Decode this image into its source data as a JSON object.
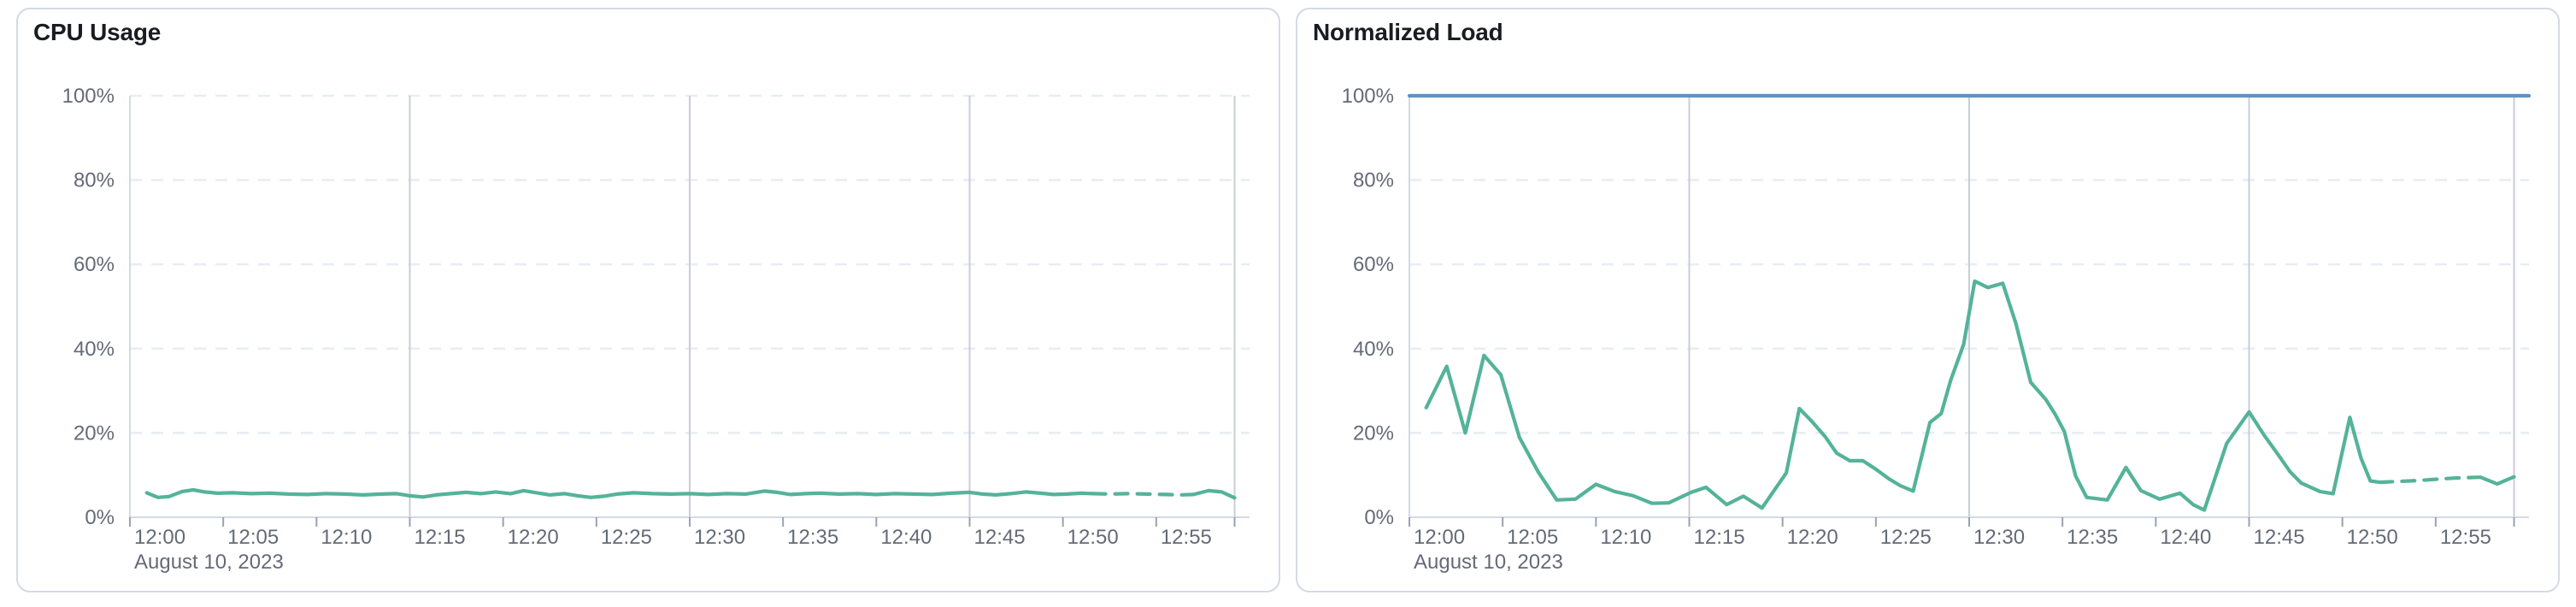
{
  "page": {
    "background_color": "#ffffff",
    "panel_count": 2
  },
  "styles": {
    "panel_border_color": "#d3dae6",
    "title_color": "#1a1c21",
    "axis_label_color": "#646a77",
    "tick_color": "#98a2b3",
    "axis_line_color": "#d3dae6",
    "grid_dashed_color": "#e8ecf3",
    "grid_solid_color": "#c8cdd7",
    "series_green": "#54B399",
    "series_blue": "#6092C0"
  },
  "chart_data": [
    {
      "type": "line",
      "title": "CPU Usage",
      "x_axis": {
        "date_label": "August 10, 2023",
        "tick_labels": [
          "12:00",
          "12:05",
          "12:10",
          "12:15",
          "12:20",
          "12:25",
          "12:30",
          "12:35",
          "12:40",
          "12:45",
          "12:50",
          "12:55"
        ],
        "tick_minutes": [
          0,
          5,
          10,
          15,
          20,
          25,
          30,
          35,
          40,
          45,
          50,
          55
        ],
        "domain_minutes": [
          0,
          60
        ],
        "solid_gridline_minutes": [
          15,
          30,
          45
        ],
        "end_marker_minute": 59.2,
        "grid": "solid vertical lines every 15 min, end-of-data marker line at right"
      },
      "y_axis": {
        "tick_labels": [
          "0%",
          "20%",
          "40%",
          "60%",
          "80%",
          "100%"
        ],
        "tick_values": [
          0,
          20,
          40,
          60,
          80,
          100
        ],
        "ylim": [
          0,
          100
        ],
        "grid": "dashed horizontal gridlines at each tick, solid baseline at 0%"
      },
      "legend": "none",
      "series": [
        {
          "name": "CPU Usage",
          "color": "#54B399",
          "dashed_from_minute": 51.6,
          "dashed_to_minute": 57.0,
          "dashed_meaning": "partial/incomplete last buckets",
          "points": [
            [
              0.9,
              5.8
            ],
            [
              1.5,
              4.7
            ],
            [
              2.1,
              4.9
            ],
            [
              2.8,
              6.1
            ],
            [
              3.4,
              6.5
            ],
            [
              4.0,
              6.0
            ],
            [
              4.7,
              5.7
            ],
            [
              5.5,
              5.8
            ],
            [
              6.5,
              5.6
            ],
            [
              7.5,
              5.7
            ],
            [
              8.5,
              5.5
            ],
            [
              9.5,
              5.4
            ],
            [
              10.5,
              5.6
            ],
            [
              11.5,
              5.5
            ],
            [
              12.5,
              5.3
            ],
            [
              13.5,
              5.5
            ],
            [
              14.3,
              5.6
            ],
            [
              15.0,
              5.1
            ],
            [
              15.7,
              4.8
            ],
            [
              16.4,
              5.3
            ],
            [
              17.2,
              5.6
            ],
            [
              18.0,
              5.9
            ],
            [
              18.8,
              5.6
            ],
            [
              19.6,
              6.0
            ],
            [
              20.4,
              5.6
            ],
            [
              21.1,
              6.3
            ],
            [
              21.8,
              5.8
            ],
            [
              22.5,
              5.3
            ],
            [
              23.3,
              5.6
            ],
            [
              24.0,
              5.1
            ],
            [
              24.7,
              4.7
            ],
            [
              25.4,
              5.0
            ],
            [
              26.1,
              5.5
            ],
            [
              27.0,
              5.8
            ],
            [
              28.0,
              5.6
            ],
            [
              29.0,
              5.5
            ],
            [
              30.0,
              5.6
            ],
            [
              31.0,
              5.4
            ],
            [
              32.0,
              5.6
            ],
            [
              33.0,
              5.5
            ],
            [
              34.0,
              6.2
            ],
            [
              34.7,
              5.9
            ],
            [
              35.4,
              5.4
            ],
            [
              36.2,
              5.6
            ],
            [
              37.0,
              5.7
            ],
            [
              38.0,
              5.5
            ],
            [
              39.0,
              5.6
            ],
            [
              40.0,
              5.4
            ],
            [
              41.0,
              5.6
            ],
            [
              42.0,
              5.5
            ],
            [
              43.0,
              5.4
            ],
            [
              44.0,
              5.7
            ],
            [
              45.0,
              5.9
            ],
            [
              45.7,
              5.5
            ],
            [
              46.4,
              5.3
            ],
            [
              47.2,
              5.6
            ],
            [
              48.0,
              6.0
            ],
            [
              48.8,
              5.7
            ],
            [
              49.5,
              5.4
            ],
            [
              50.2,
              5.5
            ],
            [
              51.0,
              5.7
            ],
            [
              51.6,
              5.6
            ],
            [
              52.5,
              5.5
            ],
            [
              53.5,
              5.6
            ],
            [
              54.5,
              5.5
            ],
            [
              55.5,
              5.4
            ],
            [
              56.2,
              5.3
            ],
            [
              57.0,
              5.4
            ],
            [
              57.8,
              6.3
            ],
            [
              58.5,
              6.0
            ],
            [
              59.2,
              4.6
            ]
          ]
        }
      ]
    },
    {
      "type": "line",
      "title": "Normalized Load",
      "x_axis": {
        "date_label": "August 10, 2023",
        "tick_labels": [
          "12:00",
          "12:05",
          "12:10",
          "12:15",
          "12:20",
          "12:25",
          "12:30",
          "12:35",
          "12:40",
          "12:45",
          "12:50",
          "12:55"
        ],
        "tick_minutes": [
          0,
          5,
          10,
          15,
          20,
          25,
          30,
          35,
          40,
          45,
          50,
          55
        ],
        "domain_minutes": [
          0,
          60
        ],
        "solid_gridline_minutes": [
          15,
          30,
          45
        ],
        "end_marker_minute": 59.2,
        "grid": "solid vertical lines every 15 min, end-of-data marker line at right"
      },
      "y_axis": {
        "tick_labels": [
          "0%",
          "20%",
          "40%",
          "60%",
          "80%",
          "100%"
        ],
        "tick_values": [
          0,
          20,
          40,
          60,
          80,
          100
        ],
        "ylim": [
          0,
          100
        ],
        "grid": "dashed horizontal gridlines at each tick, solid baseline at 0%"
      },
      "legend": "none",
      "series": [
        {
          "name": "Limit 100%",
          "color": "#6092C0",
          "points": [
            [
              0,
              100
            ],
            [
              60,
              100
            ]
          ]
        },
        {
          "name": "Normalized Load",
          "color": "#54B399",
          "dashed_from_minute": 52.0,
          "dashed_to_minute": 57.4,
          "dashed_meaning": "partial/incomplete last buckets",
          "points": [
            [
              0.9,
              26.0
            ],
            [
              2.0,
              35.8
            ],
            [
              3.0,
              20.0
            ],
            [
              4.0,
              38.4
            ],
            [
              4.9,
              33.8
            ],
            [
              5.9,
              18.9
            ],
            [
              6.9,
              10.8
            ],
            [
              7.9,
              4.1
            ],
            [
              8.9,
              4.3
            ],
            [
              10.0,
              7.8
            ],
            [
              11.0,
              6.1
            ],
            [
              12.0,
              5.1
            ],
            [
              13.0,
              3.3
            ],
            [
              13.9,
              3.4
            ],
            [
              15.1,
              5.9
            ],
            [
              15.9,
              7.1
            ],
            [
              17.0,
              3.0
            ],
            [
              17.9,
              5.0
            ],
            [
              18.9,
              2.2
            ],
            [
              20.2,
              10.5
            ],
            [
              20.9,
              25.8
            ],
            [
              21.6,
              22.6
            ],
            [
              22.3,
              19.0
            ],
            [
              22.9,
              15.2
            ],
            [
              23.6,
              13.4
            ],
            [
              24.3,
              13.4
            ],
            [
              25.0,
              11.4
            ],
            [
              25.7,
              9.1
            ],
            [
              26.3,
              7.5
            ],
            [
              27.0,
              6.2
            ],
            [
              27.9,
              22.5
            ],
            [
              28.5,
              24.6
            ],
            [
              29.0,
              32.4
            ],
            [
              29.7,
              41.0
            ],
            [
              30.3,
              56.0
            ],
            [
              31.0,
              54.5
            ],
            [
              31.8,
              55.5
            ],
            [
              32.5,
              46.0
            ],
            [
              33.3,
              32.0
            ],
            [
              34.1,
              28.0
            ],
            [
              34.6,
              24.5
            ],
            [
              35.1,
              20.3
            ],
            [
              35.7,
              9.8
            ],
            [
              36.3,
              4.7
            ],
            [
              37.4,
              4.1
            ],
            [
              38.4,
              11.8
            ],
            [
              39.2,
              6.3
            ],
            [
              40.2,
              4.3
            ],
            [
              41.3,
              5.7
            ],
            [
              42.0,
              3.0
            ],
            [
              42.6,
              1.7
            ],
            [
              43.8,
              17.5
            ],
            [
              45.0,
              25.0
            ],
            [
              45.8,
              19.5
            ],
            [
              46.5,
              15.2
            ],
            [
              47.2,
              10.8
            ],
            [
              47.8,
              8.1
            ],
            [
              48.8,
              6.1
            ],
            [
              49.5,
              5.6
            ],
            [
              50.4,
              23.7
            ],
            [
              51.0,
              14.0
            ],
            [
              51.5,
              8.6
            ],
            [
              52.0,
              8.3
            ],
            [
              53.0,
              8.5
            ],
            [
              54.0,
              8.7
            ],
            [
              55.0,
              9.0
            ],
            [
              56.0,
              9.3
            ],
            [
              57.4,
              9.5
            ],
            [
              58.3,
              7.9
            ],
            [
              59.2,
              9.6
            ]
          ]
        }
      ]
    }
  ]
}
